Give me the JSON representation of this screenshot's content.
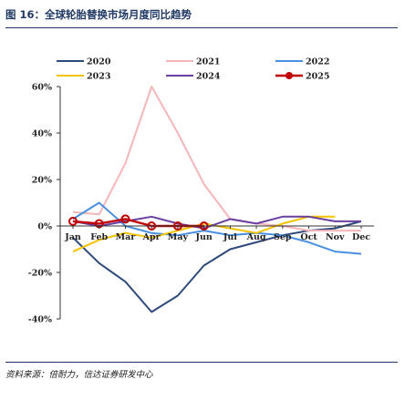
{
  "figure": {
    "title": "图 16：全球轮胎替换市场月度同比趋势",
    "source": "资料来源：倍耐力，信达证券研发中心"
  },
  "chart_data": {
    "type": "line",
    "title": "",
    "xlabel": "",
    "ylabel": "",
    "categories": [
      "Jan",
      "Feb",
      "Mar",
      "Apr",
      "May",
      "Jun",
      "Jul",
      "Aug",
      "Sep",
      "Oct",
      "Nov",
      "Dec"
    ],
    "ylim": [
      -40,
      60
    ],
    "yticks": [
      -40,
      -20,
      0,
      20,
      40,
      60
    ],
    "ytick_labels": [
      "-40%",
      "-20%",
      "0%",
      "20%",
      "40%",
      "60%"
    ],
    "grid": false,
    "legend": "top",
    "series": [
      {
        "name": "2020",
        "color": "#2e4a7d",
        "marker": false,
        "values": [
          -5,
          -16,
          -24,
          -37,
          -30,
          -17,
          -10,
          -7,
          -4,
          -2,
          -1,
          2
        ]
      },
      {
        "name": "2021",
        "color": "#f4b6b9",
        "marker": false,
        "values": [
          6,
          5,
          27,
          60,
          40,
          18,
          3,
          1,
          0,
          -2,
          -2,
          -2
        ]
      },
      {
        "name": "2022",
        "color": "#4a90e2",
        "marker": false,
        "values": [
          3,
          10,
          0,
          -3,
          -4,
          -2,
          -4,
          -3,
          -4,
          -7,
          -11,
          -12
        ]
      },
      {
        "name": "2023",
        "color": "#f3c300",
        "marker": false,
        "values": [
          -11,
          -6,
          -3,
          -5,
          -2,
          1,
          -1,
          -3,
          1,
          4,
          4,
          null
        ]
      },
      {
        "name": "2024",
        "color": "#6b3fa0",
        "marker": false,
        "values": [
          2,
          0,
          2,
          4,
          1,
          -1,
          3,
          1,
          4,
          4,
          2,
          2
        ]
      },
      {
        "name": "2025",
        "color": "#c00000",
        "marker": true,
        "values": [
          2,
          1,
          3,
          0,
          0,
          0,
          null,
          null,
          null,
          null,
          null,
          null
        ]
      }
    ]
  }
}
